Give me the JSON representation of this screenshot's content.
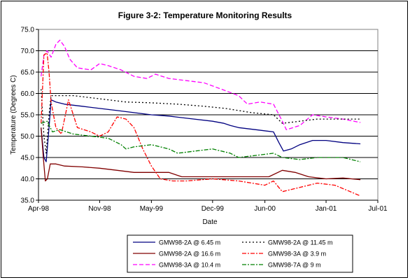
{
  "chart_data": {
    "type": "line",
    "title": "Figure 3-2:  Temperature Monitoring Results",
    "xlabel": "Date",
    "ylabel": "Temperature (Degrees C)",
    "xlim": [
      "1998-04-01",
      "2001-07-01"
    ],
    "ylim": [
      35.0,
      75.0
    ],
    "ytick_step": 5,
    "x_ticks": [
      {
        "date": "1998-04-01",
        "label": "Apr-98"
      },
      {
        "date": "1998-11-01",
        "label": "Nov-98"
      },
      {
        "date": "1999-05-01",
        "label": "May-99"
      },
      {
        "date": "1999-12-01",
        "label": "Dec-99"
      },
      {
        "date": "2000-06-01",
        "label": "Jun-00"
      },
      {
        "date": "2001-01-01",
        "label": "Jan-01"
      },
      {
        "date": "2001-07-01",
        "label": "Jul-01"
      }
    ],
    "grid": "horizontal major lines",
    "legend_position": "bottom, below plot, two columns",
    "series": [
      {
        "name": "GMW98-2A @ 6.45 m",
        "color": "#000080",
        "style": "solid",
        "points": [
          [
            "1998-04-10",
            52.0
          ],
          [
            "1998-04-20",
            45.0
          ],
          [
            "1998-04-28",
            44.0
          ],
          [
            "1998-05-08",
            52.0
          ],
          [
            "1998-05-15",
            58.5
          ],
          [
            "1998-06-01",
            58.0
          ],
          [
            "1998-07-01",
            57.5
          ],
          [
            "1998-09-01",
            57.0
          ],
          [
            "1998-11-01",
            56.5
          ],
          [
            "1999-01-01",
            56.0
          ],
          [
            "1999-03-01",
            55.5
          ],
          [
            "1999-05-01",
            55.0
          ],
          [
            "1999-07-01",
            54.7
          ],
          [
            "1999-09-01",
            54.2
          ],
          [
            "1999-12-01",
            53.5
          ],
          [
            "2000-01-10",
            53.0
          ],
          [
            "2000-02-01",
            52.5
          ],
          [
            "2000-03-01",
            52.0
          ],
          [
            "2000-05-01",
            51.5
          ],
          [
            "2000-07-01",
            51.0
          ],
          [
            "2000-07-20",
            48.5
          ],
          [
            "2000-08-05",
            46.5
          ],
          [
            "2000-09-01",
            47.0
          ],
          [
            "2000-10-01",
            48.0
          ],
          [
            "2000-11-15",
            49.0
          ],
          [
            "2001-01-01",
            49.0
          ],
          [
            "2001-03-01",
            48.5
          ],
          [
            "2001-05-01",
            48.2
          ]
        ]
      },
      {
        "name": "GMW98-2A @ 16.6 m",
        "color": "#800000",
        "style": "solid",
        "points": [
          [
            "1998-04-10",
            52.0
          ],
          [
            "1998-04-18",
            45.0
          ],
          [
            "1998-04-25",
            39.5
          ],
          [
            "1998-05-02",
            40.0
          ],
          [
            "1998-05-12",
            43.5
          ],
          [
            "1998-06-01",
            43.5
          ],
          [
            "1998-07-01",
            43.0
          ],
          [
            "1998-09-01",
            42.8
          ],
          [
            "1998-11-01",
            42.5
          ],
          [
            "1999-01-01",
            42.0
          ],
          [
            "1999-03-01",
            41.5
          ],
          [
            "1999-05-01",
            41.5
          ],
          [
            "1999-07-01",
            41.5
          ],
          [
            "1999-08-15",
            40.5
          ],
          [
            "1999-10-01",
            40.5
          ],
          [
            "1999-12-01",
            40.5
          ],
          [
            "2000-02-01",
            40.5
          ],
          [
            "2000-05-01",
            40.5
          ],
          [
            "2000-06-15",
            40.5
          ],
          [
            "2000-08-01",
            42.0
          ],
          [
            "2000-09-15",
            41.5
          ],
          [
            "2000-11-01",
            40.5
          ],
          [
            "2001-01-01",
            40.0
          ],
          [
            "2001-03-01",
            40.2
          ],
          [
            "2001-05-01",
            39.8
          ]
        ]
      },
      {
        "name": "GMW98-3A @ 10.4 m",
        "color": "#ff00ff",
        "style": "dash",
        "points": [
          [
            "1998-04-10",
            64.0
          ],
          [
            "1998-04-20",
            69.0
          ],
          [
            "1998-05-01",
            70.0
          ],
          [
            "1998-05-15",
            68.5
          ],
          [
            "1998-06-01",
            71.5
          ],
          [
            "1998-06-15",
            72.5
          ],
          [
            "1998-07-01",
            71.0
          ],
          [
            "1998-07-20",
            68.0
          ],
          [
            "1998-08-15",
            66.0
          ],
          [
            "1998-10-01",
            65.5
          ],
          [
            "1998-11-01",
            67.0
          ],
          [
            "1998-12-01",
            66.5
          ],
          [
            "1999-01-15",
            65.5
          ],
          [
            "1999-03-01",
            64.0
          ],
          [
            "1999-04-15",
            63.5
          ],
          [
            "1999-05-15",
            64.5
          ],
          [
            "1999-07-01",
            63.5
          ],
          [
            "1999-09-01",
            63.0
          ],
          [
            "1999-11-01",
            62.5
          ],
          [
            "2000-01-01",
            61.0
          ],
          [
            "2000-03-01",
            59.5
          ],
          [
            "2000-04-01",
            57.5
          ],
          [
            "2000-05-15",
            58.0
          ],
          [
            "2000-07-01",
            57.5
          ],
          [
            "2000-08-01",
            53.5
          ],
          [
            "2000-08-15",
            51.5
          ],
          [
            "2000-10-01",
            52.5
          ],
          [
            "2000-11-15",
            55.0
          ],
          [
            "2001-01-01",
            54.5
          ],
          [
            "2001-03-01",
            54.0
          ],
          [
            "2001-05-01",
            53.2
          ]
        ]
      },
      {
        "name": "GMW98-2A @ 11.45 m",
        "color": "#000000",
        "style": "dot",
        "points": [
          [
            "1998-04-10",
            61.0
          ],
          [
            "1998-04-20",
            50.0
          ],
          [
            "1998-04-28",
            46.0
          ],
          [
            "1998-05-08",
            55.0
          ],
          [
            "1998-05-15",
            59.5
          ],
          [
            "1998-06-15",
            59.5
          ],
          [
            "1998-08-01",
            59.5
          ],
          [
            "1998-10-01",
            59.0
          ],
          [
            "1998-12-01",
            58.5
          ],
          [
            "1999-02-01",
            58.0
          ],
          [
            "1999-05-01",
            57.8
          ],
          [
            "1999-08-01",
            57.5
          ],
          [
            "1999-11-01",
            57.0
          ],
          [
            "2000-01-15",
            56.5
          ],
          [
            "2000-03-01",
            56.0
          ],
          [
            "2000-04-15",
            55.5
          ],
          [
            "2000-07-01",
            55.0
          ],
          [
            "2000-08-01",
            53.0
          ],
          [
            "2000-10-01",
            53.5
          ],
          [
            "2000-12-01",
            54.0
          ],
          [
            "2001-02-01",
            54.0
          ],
          [
            "2001-05-01",
            54.0
          ]
        ]
      },
      {
        "name": "GMW98-3A @ 3.9 m",
        "color": "#ff0000",
        "style": "dashdot",
        "points": [
          [
            "1998-04-10",
            53.0
          ],
          [
            "1998-04-20",
            69.0
          ],
          [
            "1998-05-01",
            69.5
          ],
          [
            "1998-05-08",
            65.0
          ],
          [
            "1998-05-15",
            58.0
          ],
          [
            "1998-06-01",
            52.0
          ],
          [
            "1998-06-20",
            50.5
          ],
          [
            "1998-07-01",
            54.0
          ],
          [
            "1998-07-15",
            58.5
          ],
          [
            "1998-08-15",
            52.0
          ],
          [
            "1998-10-01",
            51.0
          ],
          [
            "1998-11-01",
            50.0
          ],
          [
            "1998-12-01",
            51.0
          ],
          [
            "1999-01-01",
            54.5
          ],
          [
            "1999-02-01",
            54.0
          ],
          [
            "1999-03-01",
            52.0
          ],
          [
            "1999-04-01",
            47.0
          ],
          [
            "1999-05-01",
            43.0
          ],
          [
            "1999-06-01",
            40.0
          ],
          [
            "1999-07-15",
            39.5
          ],
          [
            "1999-09-01",
            39.5
          ],
          [
            "1999-12-01",
            40.0
          ],
          [
            "2000-03-01",
            39.5
          ],
          [
            "2000-06-01",
            38.5
          ],
          [
            "2000-07-01",
            39.5
          ],
          [
            "2000-08-01",
            37.0
          ],
          [
            "2000-10-01",
            38.0
          ],
          [
            "2000-12-01",
            39.0
          ],
          [
            "2001-02-01",
            38.5
          ],
          [
            "2001-05-01",
            36.0
          ]
        ]
      },
      {
        "name": "GMW98-7A @ 9 m",
        "color": "#008000",
        "style": "dashdot",
        "points": [
          [
            "1998-04-10",
            53.0
          ],
          [
            "1998-05-01",
            53.5
          ],
          [
            "1998-05-20",
            51.0
          ],
          [
            "1998-06-15",
            51.5
          ],
          [
            "1998-08-01",
            50.5
          ],
          [
            "1998-10-01",
            50.0
          ],
          [
            "1998-12-01",
            49.5
          ],
          [
            "1999-01-15",
            48.0
          ],
          [
            "1999-02-01",
            47.0
          ],
          [
            "1999-03-01",
            47.5
          ],
          [
            "1999-05-01",
            48.0
          ],
          [
            "1999-07-01",
            47.0
          ],
          [
            "1999-08-01",
            46.0
          ],
          [
            "1999-10-01",
            46.5
          ],
          [
            "1999-12-01",
            47.0
          ],
          [
            "2000-02-01",
            46.0
          ],
          [
            "2000-03-01",
            45.0
          ],
          [
            "2000-05-01",
            45.5
          ],
          [
            "2000-07-01",
            46.0
          ],
          [
            "2000-08-01",
            45.0
          ],
          [
            "2000-10-01",
            44.5
          ],
          [
            "2000-12-01",
            45.0
          ],
          [
            "2001-03-01",
            45.0
          ],
          [
            "2001-05-01",
            44.0
          ]
        ]
      }
    ]
  }
}
